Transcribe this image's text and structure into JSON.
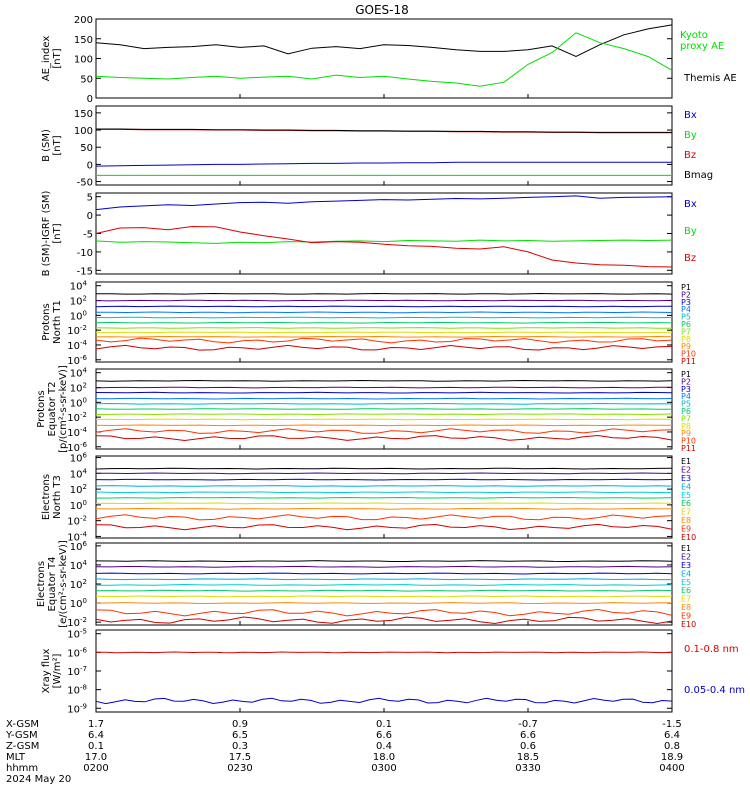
{
  "title": "GOES-18",
  "footer": {
    "date": "2024 May 20",
    "rows": [
      {
        "label": "X-GSM",
        "values": [
          "1.7",
          "0.9",
          "0.1",
          "-0.7",
          "-1.5"
        ]
      },
      {
        "label": "Y-GSM",
        "values": [
          "6.4",
          "6.5",
          "6.6",
          "6.6",
          "6.4"
        ]
      },
      {
        "label": "Z-GSM",
        "values": [
          "0.1",
          "0.3",
          "0.4",
          "0.6",
          "0.8"
        ]
      },
      {
        "label": "MLT",
        "values": [
          "17.0",
          "17.5",
          "18.0",
          "18.5",
          "18.9"
        ]
      },
      {
        "label": "hhmm",
        "values": [
          "0200",
          "0230",
          "0300",
          "0330",
          "0400"
        ]
      }
    ]
  },
  "colors": {
    "black": "#000000",
    "green": "#00dd00",
    "blue": "#0000cc",
    "red": "#dd0000",
    "P1": "#000000",
    "P2": "#550088",
    "P3": "#0000cc",
    "P4": "#0077ff",
    "P5": "#00bbcc",
    "P6": "#00cc66",
    "P7": "#88dd00",
    "P8": "#dddd00",
    "P9": "#ff8800",
    "P10": "#ff3300",
    "P11": "#cc0000"
  },
  "chart_data": [
    {
      "type": "line",
      "ylabel": [
        "AE_index",
        "[nT]"
      ],
      "yticks": [
        "0",
        "50",
        "100",
        "150",
        "200"
      ],
      "ylim": [
        0,
        200
      ],
      "x": [
        0,
        5,
        10,
        15,
        20,
        25,
        30,
        35,
        40,
        45,
        50,
        55,
        60,
        65,
        70,
        75,
        80,
        85,
        90,
        95,
        100,
        105,
        110,
        115,
        120
      ],
      "series": [
        {
          "name": "Themis AE",
          "color": "#000000",
          "values": [
            140,
            135,
            125,
            128,
            130,
            135,
            128,
            132,
            112,
            126,
            130,
            125,
            135,
            133,
            128,
            122,
            118,
            118,
            122,
            132,
            105,
            135,
            160,
            175,
            185
          ]
        },
        {
          "name": "Kyoto proxy AE",
          "color": "#00dd00",
          "values": [
            55,
            52,
            50,
            48,
            52,
            55,
            50,
            53,
            55,
            48,
            58,
            52,
            55,
            48,
            42,
            38,
            30,
            40,
            85,
            115,
            165,
            140,
            125,
            105,
            70
          ]
        }
      ],
      "legend": [
        "Kyoto proxy AE",
        "Themis AE"
      ]
    },
    {
      "type": "line",
      "ylabel": [
        "B (SM)",
        "[nT]"
      ],
      "yticks": [
        "-50",
        "0",
        "50",
        "100",
        "150"
      ],
      "ylim": [
        -60,
        170
      ],
      "series": [
        {
          "name": "Bx",
          "color": "#0000cc",
          "values": [
            -5,
            -4,
            -3,
            -2,
            -1,
            0,
            0,
            1,
            2,
            3,
            3,
            4,
            4,
            5,
            5,
            6,
            6,
            6,
            6,
            6,
            6,
            6,
            6,
            6,
            6
          ]
        },
        {
          "name": "By",
          "color": "#00dd00",
          "values": [
            -32,
            -32,
            -32,
            -32,
            -32,
            -32,
            -32,
            -32,
            -32,
            -32,
            -32,
            -32,
            -32,
            -32,
            -32,
            -32,
            -32,
            -32,
            -32,
            -32,
            -32,
            -32,
            -32,
            -32,
            -32
          ]
        },
        {
          "name": "Bz",
          "color": "#dd0000",
          "values": [
            102,
            102,
            101,
            101,
            101,
            100,
            100,
            99,
            99,
            98,
            98,
            97,
            97,
            96,
            96,
            95,
            95,
            94,
            94,
            93,
            93,
            92,
            92,
            92,
            92
          ]
        },
        {
          "name": "Bmag",
          "color": "#000000",
          "values": [
            103,
            103,
            102,
            102,
            102,
            101,
            101,
            100,
            100,
            99,
            99,
            98,
            98,
            97,
            97,
            96,
            96,
            95,
            95,
            94,
            94,
            93,
            93,
            93,
            93
          ]
        }
      ],
      "legend": [
        "Bx",
        "By",
        "Bz",
        "Bmag"
      ]
    },
    {
      "type": "line",
      "ylabel": [
        "B (SM)-IGRF (SM)",
        "[nT]"
      ],
      "yticks": [
        "-15",
        "-10",
        "-5",
        "0",
        "5"
      ],
      "ylim": [
        -16,
        6
      ],
      "series": [
        {
          "name": "Bx",
          "color": "#0000cc",
          "values": [
            1.5,
            2.2,
            2.5,
            2.8,
            2.6,
            3,
            3.4,
            3.5,
            3.2,
            3.6,
            3.8,
            4,
            4.2,
            4.1,
            4.3,
            4.5,
            4.4,
            4.6,
            4.8,
            5,
            5.2,
            4.6,
            4.8,
            4.9,
            5
          ]
        },
        {
          "name": "By",
          "color": "#00dd00",
          "values": [
            -7,
            -7.4,
            -7.2,
            -7.3,
            -7.5,
            -7.7,
            -7.4,
            -7.5,
            -7.2,
            -7.3,
            -7.1,
            -7,
            -7.2,
            -6.9,
            -7,
            -7.1,
            -6.8,
            -7,
            -6.9,
            -7.1,
            -7,
            -6.9,
            -6.8,
            -6.9,
            -6.8
          ]
        },
        {
          "name": "Bz",
          "color": "#dd0000",
          "values": [
            -5,
            -3.5,
            -3.4,
            -4,
            -3.1,
            -3.2,
            -4.6,
            -5.6,
            -6.5,
            -7.5,
            -7.2,
            -7.4,
            -7.9,
            -8.3,
            -8.5,
            -9,
            -9.2,
            -8.6,
            -10,
            -12.2,
            -13,
            -13.5,
            -13.6,
            -14,
            -14.1
          ]
        }
      ],
      "legend": [
        "Bx",
        "By",
        "Bz"
      ]
    },
    {
      "type": "line",
      "scale": "log",
      "ylabel": [
        "Protons",
        "North T1"
      ],
      "yticks": [
        "10^-6",
        "10^-4",
        "10^-2",
        "10^0",
        "10^2",
        "10^4"
      ],
      "ylim_exp": [
        -6.3,
        4.5
      ],
      "channel_levels": [
        2.9,
        2.0,
        1.2,
        0.4,
        -0.3,
        -1.0,
        -1.7,
        -2.3,
        -2.9,
        -3.4,
        -4.4
      ],
      "legend": [
        "P1",
        "P2",
        "P3",
        "P4",
        "P5",
        "P6",
        "P7",
        "P8",
        "P9",
        "P10",
        "P11"
      ]
    },
    {
      "type": "line",
      "scale": "log",
      "ylabel": [
        "Protons",
        "Equator T2",
        "[p/(cm²-s-sr-keV)]"
      ],
      "yticks": [
        "10^-6",
        "10^-4",
        "10^-2",
        "10^0",
        "10^2",
        "10^4"
      ],
      "ylim_exp": [
        -6.3,
        4.5
      ],
      "channel_levels": [
        2.9,
        2.0,
        1.3,
        0.5,
        -0.2,
        -0.9,
        -1.6,
        -2.3,
        -3.1,
        -3.9,
        -4.8
      ],
      "legend": [
        "P1",
        "P2",
        "P3",
        "P4",
        "P5",
        "P6",
        "P7",
        "P8",
        "P9",
        "P10",
        "P11"
      ]
    },
    {
      "type": "line",
      "scale": "log",
      "ylabel": [
        "Electrons",
        "North T3"
      ],
      "yticks": [
        "10^-4",
        "10^-2",
        "10^0",
        "10^2",
        "10^4",
        "10^6"
      ],
      "ylim_exp": [
        -4.2,
        6.2
      ],
      "channel_levels": [
        4.6,
        4.0,
        3.2,
        2.4,
        1.6,
        0.9,
        0.2,
        -0.5,
        -1.6,
        -2.8
      ],
      "legend": [
        "E1",
        "E2",
        "E3",
        "E4",
        "E5",
        "E6",
        "E7",
        "E8",
        "E9",
        "E10"
      ]
    },
    {
      "type": "line",
      "scale": "log",
      "ylabel": [
        "Electrons",
        "Equator T4",
        "[e/(cm²-s-sr-keV)]"
      ],
      "yticks": [
        "10^-2",
        "10^0",
        "10^2",
        "10^4",
        "10^6"
      ],
      "ylim_exp": [
        -2.3,
        6.3
      ],
      "channel_levels": [
        4.4,
        3.8,
        3.1,
        2.5,
        1.9,
        1.3,
        0.7,
        0.0,
        -1.0,
        -1.8
      ],
      "legend": [
        "E1",
        "E2",
        "E3",
        "E4",
        "E5",
        "E6",
        "E7",
        "E8",
        "E9",
        "E10"
      ]
    },
    {
      "type": "line",
      "scale": "log",
      "ylabel": [
        "Xray flux",
        "[W/m²]"
      ],
      "yticks": [
        "10^-9",
        "10^-8",
        "10^-7",
        "10^-6",
        "10^-5"
      ],
      "ylim_exp": [
        -9.2,
        -4.8
      ],
      "series": [
        {
          "name": "0.1-0.8 nm",
          "color": "#dd0000",
          "value_exp": -6.0
        },
        {
          "name": "0.05-0.4 nm",
          "color": "#0000cc",
          "value_exp": -8.6
        }
      ],
      "legend": [
        "0.1-0.8 nm",
        "0.05-0.4 nm"
      ]
    }
  ]
}
